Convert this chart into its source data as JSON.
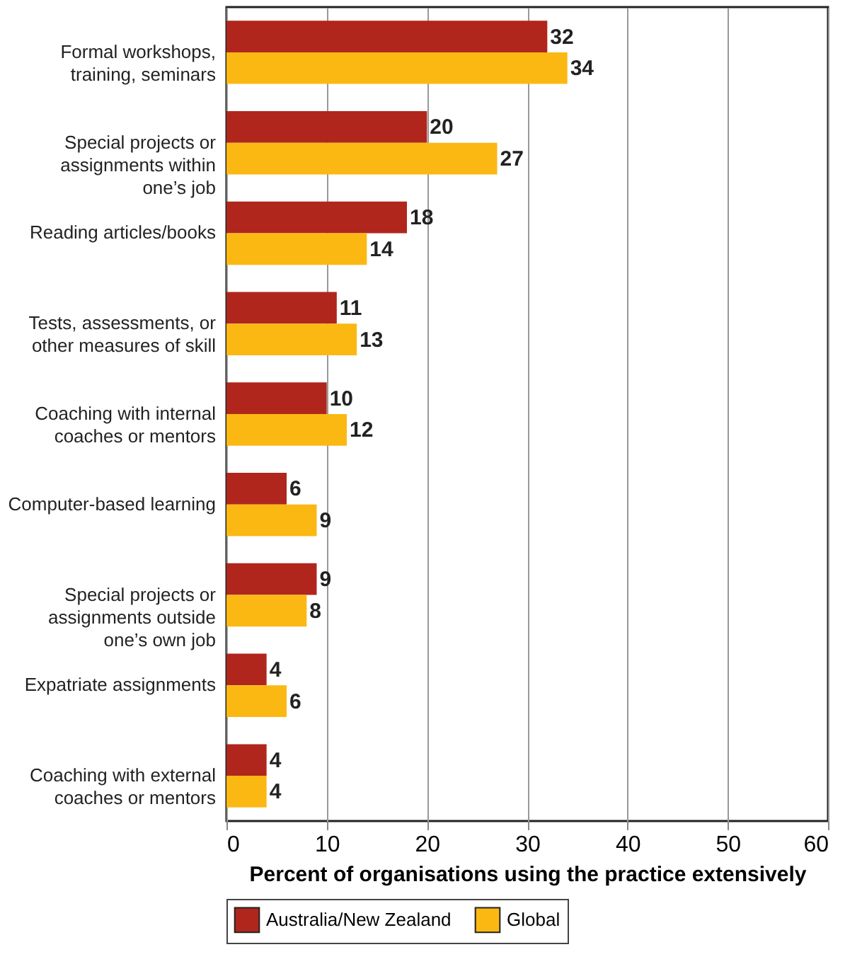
{
  "chart_data": {
    "type": "bar",
    "orientation": "horizontal",
    "xlabel": "Percent of organisations using the practice extensively",
    "categories": [
      "Formal workshops, training, seminars",
      "Special projects or assignments within one’s job",
      "Reading articles/books",
      "Tests, assessments, or other measures of skill",
      "Coaching with internal coaches or mentors",
      "Computer-based learning",
      "Special projects or assignments outside one’s own job",
      "Expatriate assignments",
      "Coaching with external coaches or mentors"
    ],
    "series": [
      {
        "name": "Australia/New Zealand",
        "color": "#b0261c",
        "values": [
          32,
          20,
          18,
          11,
          10,
          6,
          9,
          4,
          4
        ]
      },
      {
        "name": "Global",
        "color": "#fbb813",
        "values": [
          34,
          27,
          14,
          13,
          12,
          9,
          8,
          6,
          4
        ]
      }
    ],
    "xlim": [
      0,
      60
    ],
    "xticks": [
      0,
      10,
      20,
      30,
      40,
      50,
      60
    ],
    "grid": "x",
    "legend": "bottom",
    "data_labels": true
  }
}
